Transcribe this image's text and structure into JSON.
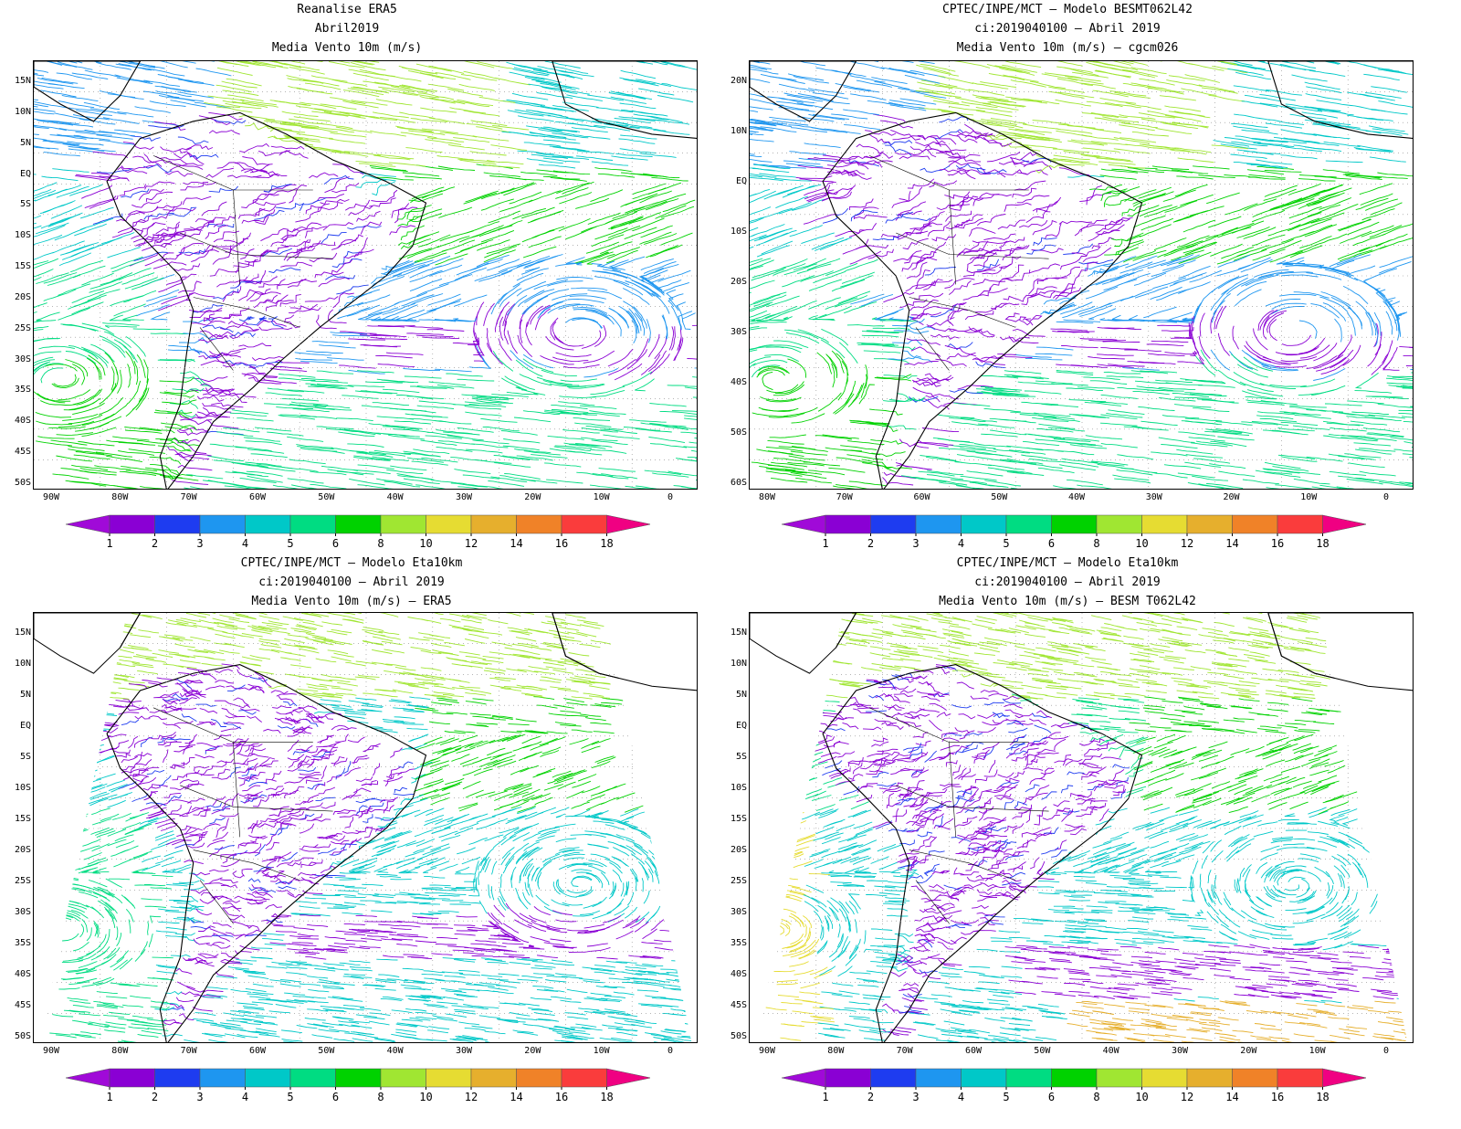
{
  "panels": [
    {
      "title_lines": [
        "Reanalise ERA5",
        "Abril2019",
        "Media Vento 10m (m/s)"
      ],
      "lat_labels": [
        "15N",
        "10N",
        "5N",
        "EQ",
        "5S",
        "10S",
        "15S",
        "20S",
        "25S",
        "30S",
        "35S",
        "40S",
        "45S",
        "50S"
      ],
      "lon_labels": [
        "90W",
        "80W",
        "70W",
        "60W",
        "50W",
        "40W",
        "30W",
        "20W",
        "10W",
        "0"
      ],
      "style": "reanalysis"
    },
    {
      "title_lines": [
        "CPTEC/INPE/MCT –  Modelo BESMT062L42",
        "ci:2019040100 – Abril 2019",
        "Media Vento 10m (m/s) – cgcm026"
      ],
      "lat_labels": [
        "20N",
        "10N",
        "EQ",
        "10S",
        "20S",
        "30S",
        "40S",
        "50S",
        "60S"
      ],
      "lon_labels": [
        "80W",
        "70W",
        "60W",
        "50W",
        "40W",
        "30W",
        "20W",
        "10W",
        "0"
      ],
      "style": "global"
    },
    {
      "title_lines": [
        "CPTEC/INPE/MCT –  Modelo Eta10km",
        "ci:2019040100 – Abril 2019",
        "Media Vento 10m (m/s) – ERA5"
      ],
      "lat_labels": [
        "15N",
        "10N",
        "5N",
        "EQ",
        "5S",
        "10S",
        "15S",
        "20S",
        "25S",
        "30S",
        "35S",
        "40S",
        "45S",
        "50S"
      ],
      "lon_labels": [
        "90W",
        "80W",
        "70W",
        "60W",
        "50W",
        "40W",
        "30W",
        "20W",
        "10W",
        "0"
      ],
      "style": "eta_era5"
    },
    {
      "title_lines": [
        "CPTEC/INPE/MCT –  Modelo Eta10km",
        "ci:2019040100 – Abril 2019",
        "Media Vento 10m (m/s) – BESM T062L42"
      ],
      "lat_labels": [
        "15N",
        "10N",
        "5N",
        "EQ",
        "5S",
        "10S",
        "15S",
        "20S",
        "25S",
        "30S",
        "35S",
        "40S",
        "45S",
        "50S"
      ],
      "lon_labels": [
        "90W",
        "80W",
        "70W",
        "60W",
        "50W",
        "40W",
        "30W",
        "20W",
        "10W",
        "0"
      ],
      "style": "eta_besm"
    }
  ],
  "colorbar": {
    "labels": [
      "1",
      "2",
      "3",
      "4",
      "5",
      "6",
      "8",
      "10",
      "12",
      "14",
      "16",
      "18"
    ],
    "colors": [
      "#a00ad8",
      "#8a00d4",
      "#1e3cf0",
      "#1e96f0",
      "#00c8c8",
      "#00dc82",
      "#00d200",
      "#a0e632",
      "#e6dc32",
      "#e6af2d",
      "#f08228",
      "#fa3c3c",
      "#f00082"
    ]
  }
}
